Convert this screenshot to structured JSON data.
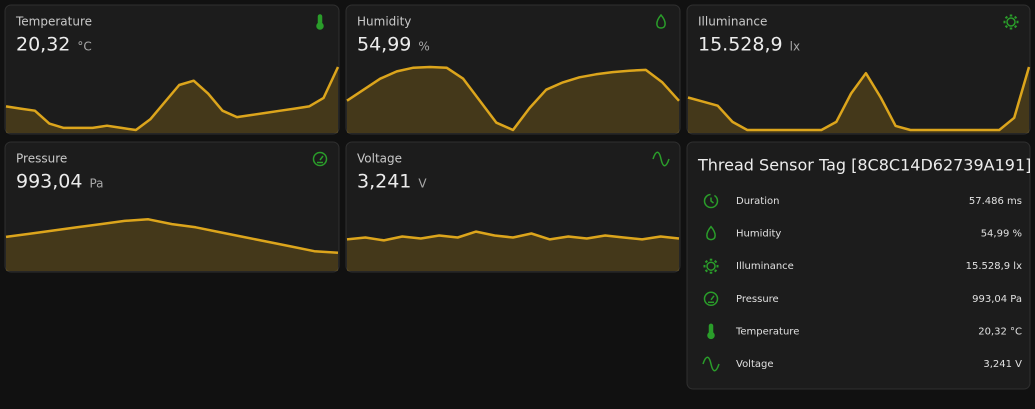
{
  "cards": [
    {
      "name": "Temperature",
      "state": "20,32",
      "unit": "°C",
      "history": [
        19.4,
        19.35,
        19.3,
        19.0,
        18.9,
        18.9,
        18.9,
        18.95,
        18.9,
        18.85,
        19.1,
        19.5,
        19.9,
        20.0,
        19.7,
        19.3,
        19.15,
        19.2,
        19.25,
        19.3,
        19.35,
        19.4,
        19.6,
        20.32
      ]
    },
    {
      "name": "Humidity",
      "state": "54,99",
      "unit": "%",
      "history": [
        55,
        56.5,
        58,
        59,
        59.5,
        59.6,
        59.5,
        58,
        55,
        52,
        51,
        54,
        56.5,
        57.5,
        58.2,
        58.6,
        58.9,
        59.1,
        59.2,
        57.5,
        54.99
      ]
    },
    {
      "name": "Illuminance",
      "state": "15.528,9",
      "unit": "lx",
      "history": [
        8000,
        7000,
        6000,
        2000,
        0,
        0,
        0,
        0,
        0,
        0,
        2000,
        9000,
        14000,
        8000,
        1000,
        0,
        0,
        0,
        0,
        0,
        0,
        0,
        3000,
        15528.9
      ]
    },
    {
      "name": "Pressure",
      "state": "993,04",
      "unit": "Pa",
      "history": [
        998,
        999,
        1000,
        1001,
        1002,
        1003,
        1003.5,
        1002,
        1001,
        999.5,
        998,
        996.5,
        995,
        993.5,
        993.04
      ]
    },
    {
      "name": "Voltage",
      "state": "3,241",
      "unit": "V",
      "history": [
        3.24,
        3.242,
        3.239,
        3.243,
        3.241,
        3.244,
        3.242,
        3.248,
        3.244,
        3.242,
        3.246,
        3.24,
        3.243,
        3.241,
        3.244,
        3.242,
        3.24,
        3.243,
        3.241
      ]
    }
  ],
  "entities": {
    "title": "Thread Sensor Tag [8C8C14D62739A191]",
    "rows": [
      {
        "name": "Duration",
        "value": "57.486 ms"
      },
      {
        "name": "Humidity",
        "value": "54,99 %"
      },
      {
        "name": "Illuminance",
        "value": "15.528,9 lx"
      },
      {
        "name": "Pressure",
        "value": "993,04 Pa"
      },
      {
        "name": "Temperature",
        "value": "20,32 °C"
      },
      {
        "name": "Voltage",
        "value": "3,241 V"
      }
    ]
  }
}
